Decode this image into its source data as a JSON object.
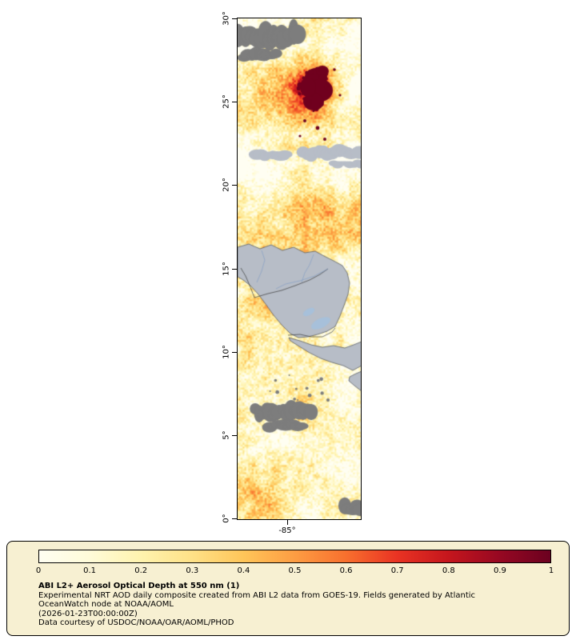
{
  "map": {
    "lat_ticks": [
      "30°",
      "25°",
      "20°",
      "15°",
      "10°",
      "5°",
      "0°"
    ],
    "lon_tick": "-85°",
    "colors": {
      "land": "#b7bdc7",
      "coast_outline": "#4a4f57",
      "no_data": "#7d7d7d",
      "river": "#7d9bc4",
      "lake": "#a7c0da",
      "border": "#3a3a3a",
      "high_aod_blob": "#70001e"
    }
  },
  "legend": {
    "background": "#f7f0d2",
    "ticks": [
      "0",
      "0.1",
      "0.2",
      "0.3",
      "0.4",
      "0.5",
      "0.6",
      "0.7",
      "0.8",
      "0.9",
      "1"
    ],
    "title": "ABI L2+ Aerosol Optical Depth at 550 nm (1)",
    "description": "Experimental NRT AOD daily composite created from ABI L2 data from GOES-19. Fields generated by Atlantic OceanWatch node at NOAA/AOML",
    "timestamp": "(2026-01-23T00:00:00Z)",
    "credit": "Data courtesy of USDOC/NOAA/OAR/AOML/PHOD",
    "colormap": [
      {
        "value": 0.0,
        "color": "#fffef2"
      },
      {
        "value": 0.1,
        "color": "#fffbd8"
      },
      {
        "value": 0.2,
        "color": "#fff3ae"
      },
      {
        "value": 0.3,
        "color": "#fee187"
      },
      {
        "value": 0.4,
        "color": "#fec559"
      },
      {
        "value": 0.5,
        "color": "#fd9d43"
      },
      {
        "value": 0.6,
        "color": "#f8702e"
      },
      {
        "value": 0.7,
        "color": "#e93323"
      },
      {
        "value": 0.8,
        "color": "#c5161d"
      },
      {
        "value": 0.9,
        "color": "#970822"
      },
      {
        "value": 1.0,
        "color": "#6b0120"
      }
    ]
  },
  "chart_data": {
    "type": "heatmap",
    "title": "ABI L2+ Aerosol Optical Depth at 550 nm (1)",
    "y_axis_ticks": [
      "30°",
      "25°",
      "20°",
      "15°",
      "10°",
      "5°",
      "0°"
    ],
    "x_axis_ticks": [
      "-85°"
    ],
    "colorbar": {
      "ticks": [
        0,
        0.1,
        0.2,
        0.3,
        0.4,
        0.5,
        0.6,
        0.7,
        0.8,
        0.9,
        1
      ],
      "range": [
        0,
        1
      ]
    }
  }
}
